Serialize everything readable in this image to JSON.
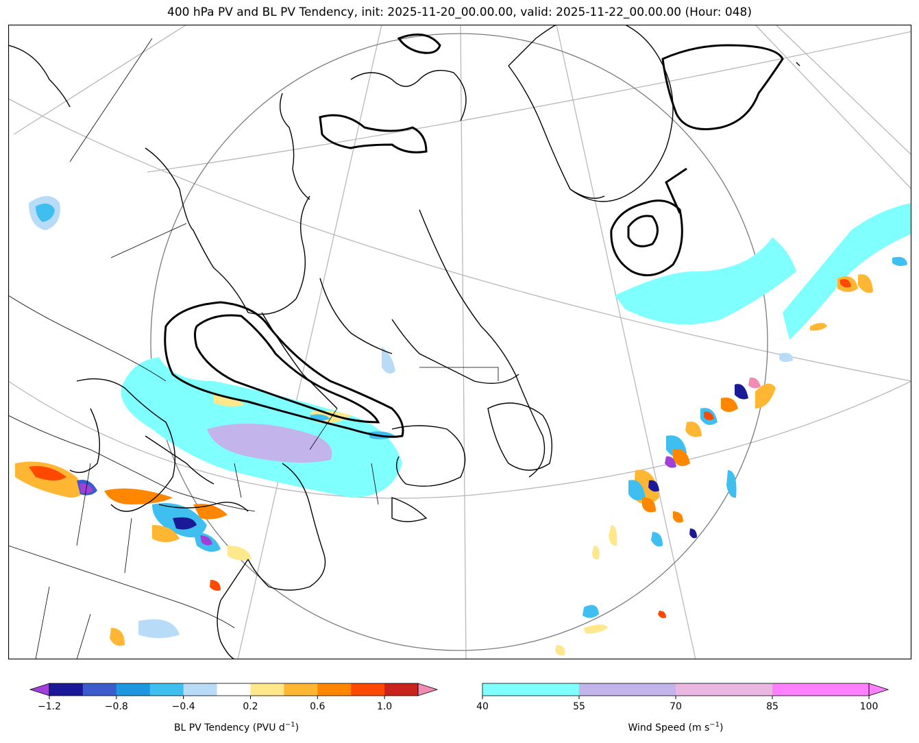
{
  "title": "400 hPa PV and BL PV Tendency, init: 2025-11-20_00.00.00, valid: 2025-11-22_00.00.00 (Hour: 048)",
  "colorbars": {
    "pv_tendency": {
      "label": "BL PV Tendency (PVU d",
      "label_sup": "−1",
      "label_close": ")",
      "ticks": [
        "−1.2",
        "−0.8",
        "−0.4",
        "0.2",
        "0.6",
        "1.0"
      ],
      "tick_values": [
        -1.2,
        -0.8,
        -0.4,
        0.2,
        0.6,
        1.0
      ],
      "levels": [
        -1.2,
        -1.0,
        -0.8,
        -0.6,
        -0.4,
        -0.2,
        0.2,
        0.4,
        0.6,
        0.8,
        1.0,
        1.2
      ],
      "colors": [
        "#1a1a99",
        "#3c5bcc",
        "#1f96e0",
        "#3fbef0",
        "#b8dcf8",
        "#ffffff",
        "#ffe78c",
        "#ffb733",
        "#ff8700",
        "#ff4800",
        "#c8241c"
      ],
      "under_color": "#a040d8",
      "over_color": "#f08cb4",
      "extend": "both"
    },
    "wind_speed": {
      "label": "Wind Speed (m s",
      "label_sup": "−1",
      "label_close": ")",
      "ticks": [
        "40",
        "55",
        "70",
        "85",
        "100"
      ],
      "tick_values": [
        40,
        55,
        70,
        85,
        100
      ],
      "colors": [
        "#80ffff",
        "#c4b4ec",
        "#eab6e2",
        "#ff80ff"
      ],
      "extend": "max"
    }
  },
  "map": {
    "projection": "polar-stereographic",
    "colors": {
      "coast": "#000000",
      "pv_contour": "#000000",
      "graticule": "#aaaaaa",
      "circle": "#7a7a7a"
    }
  }
}
